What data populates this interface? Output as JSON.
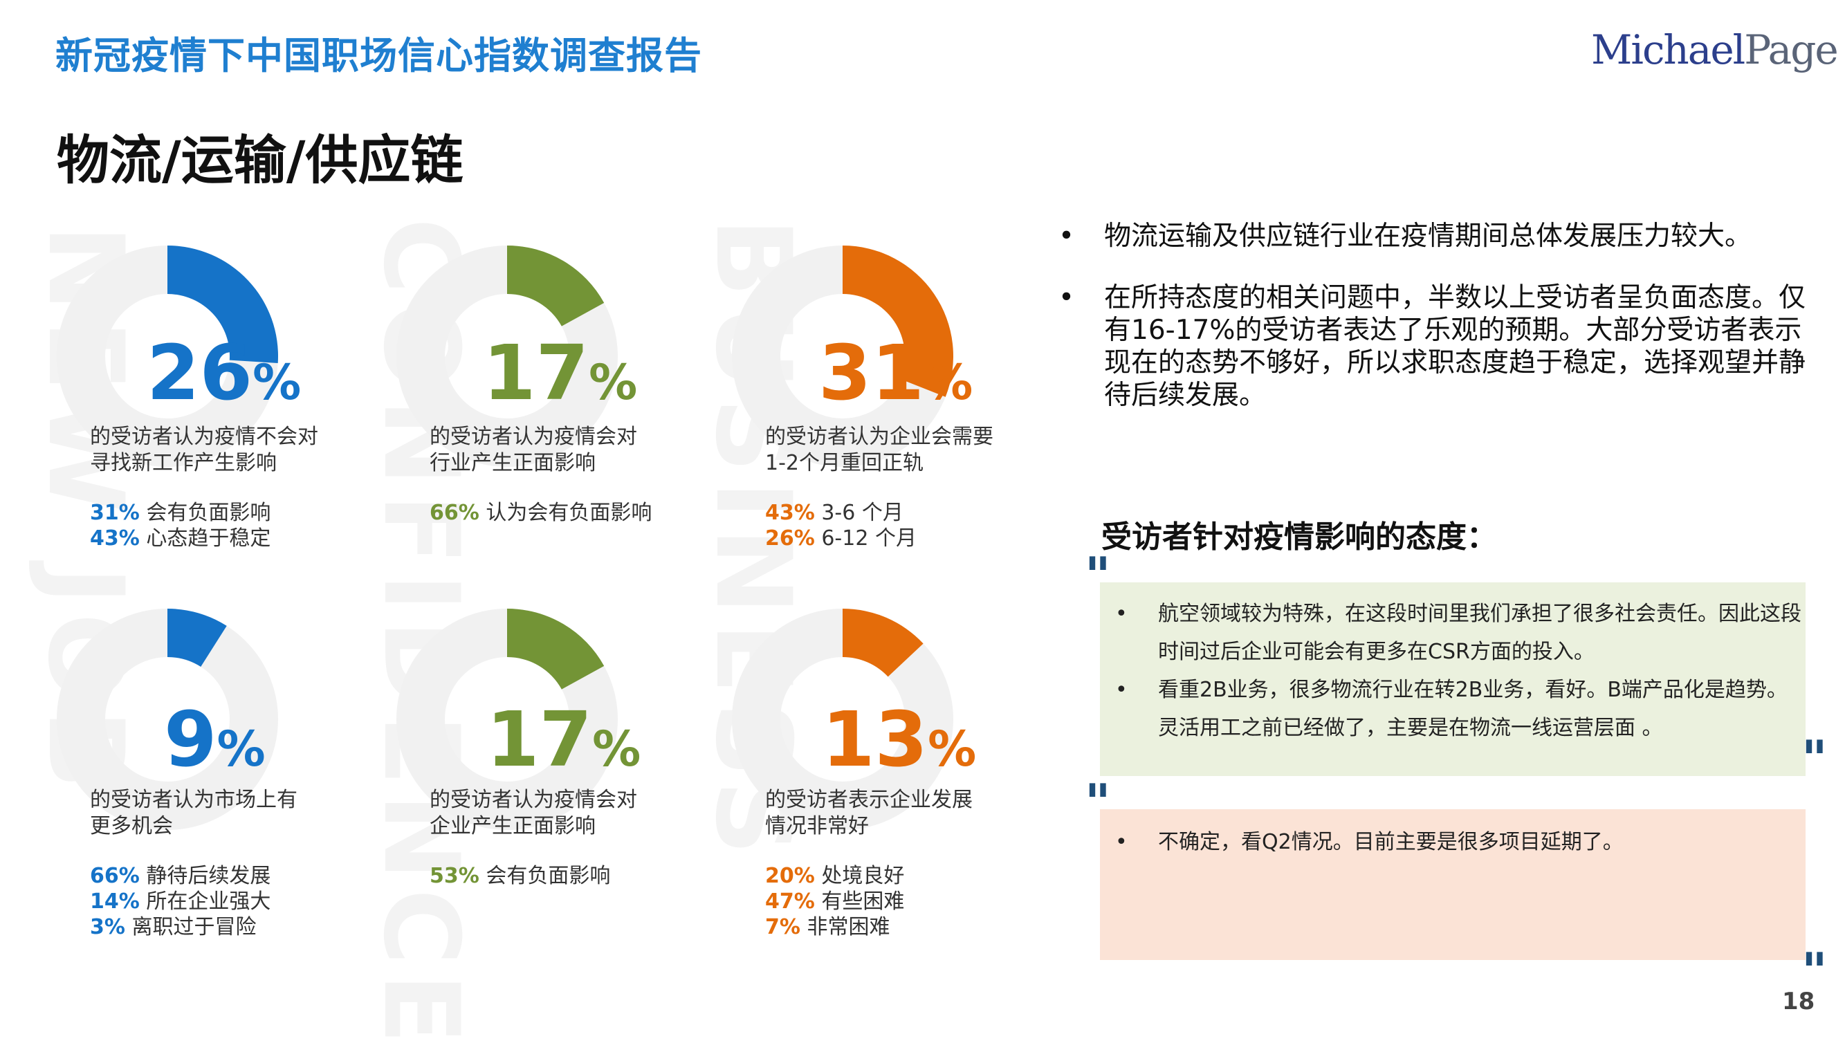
{
  "header": {
    "title": "新冠疫情下中国职场信心指数调查报告",
    "logo_part1": "Michael",
    "logo_part2": "Page",
    "page_number": "18"
  },
  "section_title": "物流/运输/供应链",
  "watermarks": [
    "NEW JOB",
    "CONFIDENCE",
    "BUSINESS"
  ],
  "colors": {
    "blue": "#1573c8",
    "green": "#739436",
    "orange": "#e46c0a",
    "ring": "#f1f1f1"
  },
  "kpis": [
    {
      "value": "26",
      "unit": "%",
      "fraction": 0.26,
      "color": "blue",
      "desc": [
        "的受访者认为疫情不会对",
        "寻找新工作产生影响"
      ],
      "stats": [
        {
          "pct": "31%",
          "text": " 会有负面影响"
        },
        {
          "pct": "43%",
          "text": " 心态趋于稳定"
        }
      ]
    },
    {
      "value": "17",
      "unit": "%",
      "fraction": 0.17,
      "color": "green",
      "desc": [
        "的受访者认为疫情会对",
        "行业产生正面影响"
      ],
      "stats": [
        {
          "pct": "66%",
          "text": " 认为会有负面影响"
        }
      ]
    },
    {
      "value": "31",
      "unit": "%",
      "fraction": 0.31,
      "color": "orange",
      "desc": [
        "的受访者认为企业会需要",
        "1-2个月重回正轨"
      ],
      "stats": [
        {
          "pct": "43%",
          "text": " 3-6 个月"
        },
        {
          "pct": "26%",
          "text": " 6-12 个月"
        }
      ]
    },
    {
      "value": "9",
      "unit": "%",
      "fraction": 0.09,
      "color": "blue",
      "desc": [
        "的受访者认为市场上有",
        "更多机会"
      ],
      "stats": [
        {
          "pct": "66%",
          "text": " 静待后续发展"
        },
        {
          "pct": "14%",
          "text": " 所在企业强大"
        },
        {
          "pct": "3%",
          "text": " 离职过于冒险"
        }
      ]
    },
    {
      "value": "17",
      "unit": "%",
      "fraction": 0.17,
      "color": "green",
      "desc": [
        "的受访者认为疫情会对",
        "企业产生正面影响"
      ],
      "stats": [
        {
          "pct": "53%",
          "text": " 会有负面影响"
        }
      ]
    },
    {
      "value": "13",
      "unit": "%",
      "fraction": 0.13,
      "color": "orange",
      "desc": [
        "的受访者表示企业发展",
        "情况非常好"
      ],
      "stats": [
        {
          "pct": "20%",
          "text": " 处境良好"
        },
        {
          "pct": "47%",
          "text": " 有些困难"
        },
        {
          "pct": "7%",
          "text": " 非常困难"
        }
      ]
    }
  ],
  "summary_bullets": [
    "物流运输及供应链行业在疫情期间总体发展压力较大。",
    "在所持态度的相关问题中，半数以上受访者呈负面态度。仅有16-17%的受访者表达了乐观的预期。大部分受访者表示现在的态势不够好，所以求职态度趋于稳定，选择观望并静待后续发展。"
  ],
  "attitude_title": "受访者针对疫情影响的态度：",
  "quote_mark": "\"",
  "quotes_green": [
    "航空领域较为特殊，在这段时间里我们承担了很多社会责任。因此这段时间过后企业可能会有更多在CSR方面的投入。",
    "看重2B业务，很多物流行业在转2B业务，看好。B端产品化是趋势。灵活用工之前已经做了，主要是在物流一线运营层面 。"
  ],
  "quotes_orange": [
    "不确定，看Q2情况。目前主要是很多项目延期了。"
  ]
}
